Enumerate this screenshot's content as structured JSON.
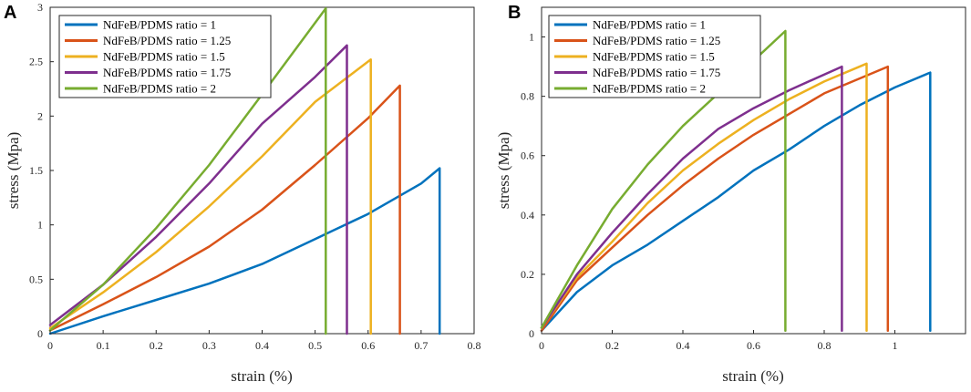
{
  "colors": {
    "series": [
      "#0072BD",
      "#D95319",
      "#EDB120",
      "#7E2F8E",
      "#77AC30"
    ]
  },
  "chart_data": [
    {
      "type": "line",
      "panel": "A",
      "title": "",
      "xlabel": "strain (%)",
      "ylabel": "stress (Mpa)",
      "xlim": [
        0,
        0.8
      ],
      "ylim": [
        0,
        3
      ],
      "x_ticks": [
        0,
        0.1,
        0.2,
        0.3,
        0.4,
        0.5,
        0.6,
        0.7,
        0.8
      ],
      "x_tick_labels": [
        "0",
        "0.1",
        "0.2",
        "0.3",
        "0.4",
        "0.5",
        "0.6",
        "0.7",
        "0.8"
      ],
      "y_ticks": [
        0,
        0.5,
        1,
        1.5,
        2,
        2.5,
        3
      ],
      "y_tick_labels": [
        "0",
        "0.5",
        "1",
        "1.5",
        "2",
        "2.5",
        "3"
      ],
      "legend_position": "top-left",
      "series": [
        {
          "name": "NdFeB/PDMS ratio = 1",
          "x": [
            0,
            0.1,
            0.2,
            0.3,
            0.4,
            0.5,
            0.6,
            0.7,
            0.735,
            0.735
          ],
          "y": [
            0,
            0.16,
            0.31,
            0.46,
            0.64,
            0.87,
            1.1,
            1.38,
            1.52,
            0
          ]
        },
        {
          "name": "NdFeB/PDMS ratio = 1.25",
          "x": [
            0,
            0.1,
            0.2,
            0.3,
            0.4,
            0.5,
            0.6,
            0.66,
            0.66
          ],
          "y": [
            0.03,
            0.27,
            0.52,
            0.8,
            1.14,
            1.55,
            1.98,
            2.28,
            0
          ]
        },
        {
          "name": "NdFeB/PDMS ratio = 1.5",
          "x": [
            0,
            0.1,
            0.2,
            0.3,
            0.4,
            0.5,
            0.605,
            0.605
          ],
          "y": [
            0.05,
            0.38,
            0.75,
            1.17,
            1.63,
            2.13,
            2.52,
            0
          ]
        },
        {
          "name": "NdFeB/PDMS ratio = 1.75",
          "x": [
            0,
            0.1,
            0.2,
            0.3,
            0.4,
            0.5,
            0.56,
            0.56
          ],
          "y": [
            0.08,
            0.45,
            0.89,
            1.38,
            1.93,
            2.36,
            2.65,
            0
          ]
        },
        {
          "name": "NdFeB/PDMS ratio = 2",
          "x": [
            0,
            0.1,
            0.2,
            0.3,
            0.4,
            0.52,
            0.52
          ],
          "y": [
            0.03,
            0.45,
            0.97,
            1.55,
            2.2,
            2.99,
            0
          ]
        }
      ]
    },
    {
      "type": "line",
      "panel": "B",
      "title": "",
      "xlabel": "strain (%)",
      "ylabel": "stress (Mpa)",
      "xlim": [
        0,
        1.2
      ],
      "ylim": [
        0,
        1.1
      ],
      "x_ticks": [
        0,
        0.2,
        0.4,
        0.6,
        0.8,
        1
      ],
      "x_tick_labels": [
        "0",
        "0.2",
        "0.4",
        "0.6",
        "0.8",
        "1"
      ],
      "y_ticks": [
        0,
        0.2,
        0.4,
        0.6,
        0.8,
        1
      ],
      "y_tick_labels": [
        "0",
        "0.2",
        "0.4",
        "0.6",
        "0.8",
        "1"
      ],
      "legend_position": "top-left",
      "series": [
        {
          "name": "NdFeB/PDMS ratio = 1",
          "x": [
            0,
            0.1,
            0.2,
            0.3,
            0.4,
            0.5,
            0.6,
            0.7,
            0.8,
            0.9,
            1.0,
            1.1,
            1.1
          ],
          "y": [
            0.01,
            0.14,
            0.23,
            0.3,
            0.38,
            0.46,
            0.55,
            0.62,
            0.7,
            0.77,
            0.83,
            0.88,
            0.01
          ]
        },
        {
          "name": "NdFeB/PDMS ratio = 1.25",
          "x": [
            0,
            0.1,
            0.2,
            0.3,
            0.4,
            0.5,
            0.6,
            0.7,
            0.8,
            0.9,
            0.98,
            0.98
          ],
          "y": [
            0.01,
            0.18,
            0.29,
            0.4,
            0.5,
            0.59,
            0.67,
            0.74,
            0.81,
            0.86,
            0.9,
            0.01
          ]
        },
        {
          "name": "NdFeB/PDMS ratio = 1.5",
          "x": [
            0,
            0.1,
            0.2,
            0.3,
            0.4,
            0.5,
            0.6,
            0.7,
            0.8,
            0.92,
            0.92
          ],
          "y": [
            0.02,
            0.19,
            0.31,
            0.44,
            0.55,
            0.64,
            0.72,
            0.79,
            0.85,
            0.91,
            0.01
          ]
        },
        {
          "name": "NdFeB/PDMS ratio = 1.75",
          "x": [
            0,
            0.1,
            0.2,
            0.3,
            0.4,
            0.5,
            0.6,
            0.7,
            0.85,
            0.85
          ],
          "y": [
            0.02,
            0.2,
            0.34,
            0.47,
            0.59,
            0.69,
            0.76,
            0.82,
            0.9,
            0.01
          ]
        },
        {
          "name": "NdFeB/PDMS ratio = 2",
          "x": [
            0,
            0.1,
            0.2,
            0.3,
            0.4,
            0.5,
            0.6,
            0.69,
            0.69
          ],
          "y": [
            0.02,
            0.23,
            0.42,
            0.57,
            0.7,
            0.81,
            0.92,
            1.02,
            0.01
          ]
        }
      ]
    }
  ]
}
